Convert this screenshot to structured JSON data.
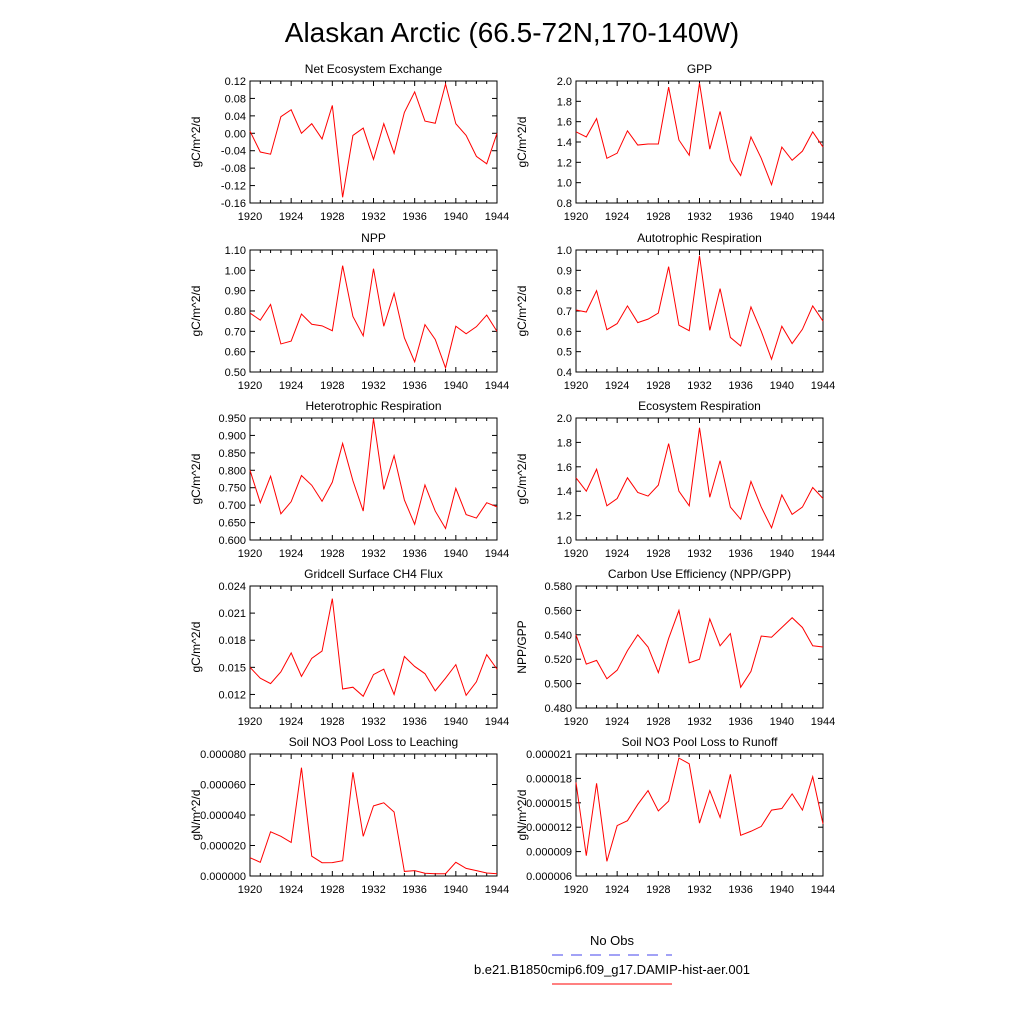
{
  "figure": {
    "title": "Alaskan Arctic (66.5-72N,170-140W)",
    "legend": [
      {
        "label": "No Obs",
        "color": "#4444ee",
        "dash": true
      },
      {
        "label": "b.e21.B1850cmip6.f09_g17.DAMIP-hist-aer.001",
        "color": "#ff0000",
        "dash": false
      }
    ]
  },
  "chart_data": [
    {
      "type": "line",
      "title": "Net Ecosystem Exchange",
      "ylabel": "gC/m^2/d",
      "xlabel": "",
      "xlim": [
        1920,
        1944
      ],
      "xticks": [
        1920,
        1924,
        1928,
        1932,
        1936,
        1940,
        1944
      ],
      "xtick_labels": [
        "1920",
        "1924",
        "1928",
        "1932",
        "1936",
        "1940",
        "1944"
      ],
      "ylim": [
        -0.16,
        0.12
      ],
      "yticks": [
        -0.16,
        -0.12,
        -0.08,
        -0.04,
        0,
        0.04,
        0.08,
        0.12
      ],
      "ytick_labels": [
        "-0.16",
        "-0.12",
        "-0.08",
        "-0.04",
        "0.00",
        "0.04",
        "0.08",
        "0.12"
      ],
      "series": [
        {
          "color": "#ff0000",
          "x": [
            1920,
            1921,
            1922,
            1923,
            1924,
            1925,
            1926,
            1927,
            1928,
            1929,
            1930,
            1931,
            1932,
            1933,
            1934,
            1935,
            1936,
            1937,
            1938,
            1939,
            1940,
            1941,
            1942,
            1943,
            1944
          ],
          "y": [
            0.005,
            -0.043,
            -0.048,
            0.038,
            0.054,
            0.0,
            0.022,
            -0.013,
            0.064,
            -0.147,
            -0.005,
            0.012,
            -0.06,
            0.022,
            -0.046,
            0.048,
            0.095,
            0.028,
            0.023,
            0.113,
            0.022,
            -0.005,
            -0.053,
            -0.07,
            0.0
          ]
        }
      ]
    },
    {
      "type": "line",
      "title": "GPP",
      "ylabel": "gC/m^2/d",
      "xlabel": "",
      "xlim": [
        1920,
        1944
      ],
      "xticks": [
        1920,
        1924,
        1928,
        1932,
        1936,
        1940,
        1944
      ],
      "xtick_labels": [
        "1920",
        "1924",
        "1928",
        "1932",
        "1936",
        "1940",
        "1944"
      ],
      "ylim": [
        0.8,
        2.0
      ],
      "yticks": [
        0.8,
        1.0,
        1.2,
        1.4,
        1.6,
        1.8,
        2.0
      ],
      "ytick_labels": [
        "0.8",
        "1.0",
        "1.2",
        "1.4",
        "1.6",
        "1.8",
        "2.0"
      ],
      "series": [
        {
          "color": "#ff0000",
          "x": [
            1920,
            1921,
            1922,
            1923,
            1924,
            1925,
            1926,
            1927,
            1928,
            1929,
            1930,
            1931,
            1932,
            1933,
            1934,
            1935,
            1936,
            1937,
            1938,
            1939,
            1940,
            1941,
            1942,
            1943,
            1944
          ],
          "y": [
            1.5,
            1.45,
            1.63,
            1.24,
            1.29,
            1.51,
            1.37,
            1.38,
            1.38,
            1.94,
            1.42,
            1.27,
            1.98,
            1.33,
            1.7,
            1.22,
            1.07,
            1.45,
            1.24,
            0.98,
            1.35,
            1.22,
            1.31,
            1.5,
            1.35
          ]
        }
      ]
    },
    {
      "type": "line",
      "title": "NPP",
      "ylabel": "gC/m^2/d",
      "xlabel": "",
      "xlim": [
        1920,
        1944
      ],
      "xticks": [
        1920,
        1924,
        1928,
        1932,
        1936,
        1940,
        1944
      ],
      "xtick_labels": [
        "1920",
        "1924",
        "1928",
        "1932",
        "1936",
        "1940",
        "1944"
      ],
      "ylim": [
        0.5,
        1.1
      ],
      "yticks": [
        0.5,
        0.6,
        0.7,
        0.8,
        0.9,
        1.0,
        1.1
      ],
      "ytick_labels": [
        "0.50",
        "0.60",
        "0.70",
        "0.80",
        "0.90",
        "1.00",
        "1.10"
      ],
      "series": [
        {
          "color": "#ff0000",
          "x": [
            1920,
            1921,
            1922,
            1923,
            1924,
            1925,
            1926,
            1927,
            1928,
            1929,
            1930,
            1931,
            1932,
            1933,
            1934,
            1935,
            1936,
            1937,
            1938,
            1939,
            1940,
            1941,
            1942,
            1943,
            1944
          ],
          "y": [
            0.79,
            0.755,
            0.832,
            0.638,
            0.652,
            0.785,
            0.735,
            0.727,
            0.703,
            1.023,
            0.773,
            0.678,
            1.008,
            0.725,
            0.887,
            0.668,
            0.55,
            0.733,
            0.66,
            0.52,
            0.725,
            0.688,
            0.723,
            0.78,
            0.7
          ]
        }
      ]
    },
    {
      "type": "line",
      "title": "Autotrophic Respiration",
      "ylabel": "gC/m^2/d",
      "xlabel": "",
      "xlim": [
        1920,
        1944
      ],
      "xticks": [
        1920,
        1924,
        1928,
        1932,
        1936,
        1940,
        1944
      ],
      "xtick_labels": [
        "1920",
        "1924",
        "1928",
        "1932",
        "1936",
        "1940",
        "1944"
      ],
      "ylim": [
        0.4,
        1.0
      ],
      "yticks": [
        0.4,
        0.5,
        0.6,
        0.7,
        0.8,
        0.9,
        1.0
      ],
      "ytick_labels": [
        "0.4",
        "0.5",
        "0.6",
        "0.7",
        "0.8",
        "0.9",
        "1.0"
      ],
      "series": [
        {
          "color": "#ff0000",
          "x": [
            1920,
            1921,
            1922,
            1923,
            1924,
            1925,
            1926,
            1927,
            1928,
            1929,
            1930,
            1931,
            1932,
            1933,
            1934,
            1935,
            1936,
            1937,
            1938,
            1939,
            1940,
            1941,
            1942,
            1943,
            1944
          ],
          "y": [
            0.705,
            0.695,
            0.8,
            0.608,
            0.638,
            0.725,
            0.643,
            0.66,
            0.69,
            0.918,
            0.63,
            0.603,
            0.972,
            0.605,
            0.81,
            0.57,
            0.528,
            0.72,
            0.6,
            0.463,
            0.625,
            0.54,
            0.61,
            0.725,
            0.65
          ]
        }
      ]
    },
    {
      "type": "line",
      "title": "Heterotrophic Respiration",
      "ylabel": "gC/m^2/d",
      "xlabel": "",
      "xlim": [
        1920,
        1944
      ],
      "xticks": [
        1920,
        1924,
        1928,
        1932,
        1936,
        1940,
        1944
      ],
      "xtick_labels": [
        "1920",
        "1924",
        "1928",
        "1932",
        "1936",
        "1940",
        "1944"
      ],
      "ylim": [
        0.6,
        0.95
      ],
      "yticks": [
        0.6,
        0.65,
        0.7,
        0.75,
        0.8,
        0.85,
        0.9,
        0.95
      ],
      "ytick_labels": [
        "0.600",
        "0.650",
        "0.700",
        "0.750",
        "0.800",
        "0.850",
        "0.900",
        "0.950"
      ],
      "series": [
        {
          "color": "#ff0000",
          "x": [
            1920,
            1921,
            1922,
            1923,
            1924,
            1925,
            1926,
            1927,
            1928,
            1929,
            1930,
            1931,
            1932,
            1933,
            1934,
            1935,
            1936,
            1937,
            1938,
            1939,
            1940,
            1941,
            1942,
            1943,
            1944
          ],
          "y": [
            0.8,
            0.707,
            0.783,
            0.675,
            0.71,
            0.785,
            0.757,
            0.711,
            0.766,
            0.877,
            0.77,
            0.683,
            0.948,
            0.745,
            0.842,
            0.715,
            0.645,
            0.758,
            0.683,
            0.633,
            0.748,
            0.673,
            0.663,
            0.707,
            0.695
          ]
        }
      ]
    },
    {
      "type": "line",
      "title": "Ecosystem Respiration",
      "ylabel": "gC/m^2/d",
      "xlabel": "",
      "xlim": [
        1920,
        1944
      ],
      "xticks": [
        1920,
        1924,
        1928,
        1932,
        1936,
        1940,
        1944
      ],
      "xtick_labels": [
        "1920",
        "1924",
        "1928",
        "1932",
        "1936",
        "1940",
        "1944"
      ],
      "ylim": [
        1.0,
        2.0
      ],
      "yticks": [
        1.0,
        1.2,
        1.4,
        1.6,
        1.8,
        2.0
      ],
      "ytick_labels": [
        "1.0",
        "1.2",
        "1.4",
        "1.6",
        "1.8",
        "2.0"
      ],
      "series": [
        {
          "color": "#ff0000",
          "x": [
            1920,
            1921,
            1922,
            1923,
            1924,
            1925,
            1926,
            1927,
            1928,
            1929,
            1930,
            1931,
            1932,
            1933,
            1934,
            1935,
            1936,
            1937,
            1938,
            1939,
            1940,
            1941,
            1942,
            1943,
            1944
          ],
          "y": [
            1.51,
            1.4,
            1.58,
            1.28,
            1.34,
            1.51,
            1.39,
            1.36,
            1.45,
            1.79,
            1.4,
            1.28,
            1.92,
            1.35,
            1.65,
            1.27,
            1.17,
            1.48,
            1.27,
            1.1,
            1.37,
            1.21,
            1.27,
            1.43,
            1.34
          ]
        }
      ]
    },
    {
      "type": "line",
      "title": "Gridcell Surface CH4 Flux",
      "ylabel": "gC/m^2/d",
      "xlabel": "",
      "xlim": [
        1920,
        1944
      ],
      "xticks": [
        1920,
        1924,
        1928,
        1932,
        1936,
        1940,
        1944
      ],
      "xtick_labels": [
        "1920",
        "1924",
        "1928",
        "1932",
        "1936",
        "1940",
        "1944"
      ],
      "ylim": [
        0.0105,
        0.024
      ],
      "yticks": [
        0.012,
        0.015,
        0.018,
        0.021,
        0.024
      ],
      "ytick_labels": [
        "0.012",
        "0.015",
        "0.018",
        "0.021",
        "0.024"
      ],
      "series": [
        {
          "color": "#ff0000",
          "x": [
            1920,
            1921,
            1922,
            1923,
            1924,
            1925,
            1926,
            1927,
            1928,
            1929,
            1930,
            1931,
            1932,
            1933,
            1934,
            1935,
            1936,
            1937,
            1938,
            1939,
            1940,
            1941,
            1942,
            1943,
            1944
          ],
          "y": [
            0.015,
            0.0138,
            0.0132,
            0.0145,
            0.0166,
            0.014,
            0.016,
            0.0168,
            0.0226,
            0.0126,
            0.0128,
            0.0118,
            0.0142,
            0.0148,
            0.012,
            0.0162,
            0.0151,
            0.0143,
            0.0124,
            0.0138,
            0.0153,
            0.0119,
            0.0134,
            0.0164,
            0.0148
          ]
        }
      ]
    },
    {
      "type": "line",
      "title": "Carbon Use Efficiency (NPP/GPP)",
      "ylabel": "NPP/GPP",
      "xlabel": "",
      "xlim": [
        1920,
        1944
      ],
      "xticks": [
        1920,
        1924,
        1928,
        1932,
        1936,
        1940,
        1944
      ],
      "xtick_labels": [
        "1920",
        "1924",
        "1928",
        "1932",
        "1936",
        "1940",
        "1944"
      ],
      "ylim": [
        0.48,
        0.58
      ],
      "yticks": [
        0.48,
        0.5,
        0.52,
        0.54,
        0.56,
        0.58
      ],
      "ytick_labels": [
        "0.480",
        "0.500",
        "0.520",
        "0.540",
        "0.560",
        "0.580"
      ],
      "series": [
        {
          "color": "#ff0000",
          "x": [
            1920,
            1921,
            1922,
            1923,
            1924,
            1925,
            1926,
            1927,
            1928,
            1929,
            1930,
            1931,
            1932,
            1933,
            1934,
            1935,
            1936,
            1937,
            1938,
            1939,
            1940,
            1941,
            1942,
            1943,
            1944
          ],
          "y": [
            0.54,
            0.516,
            0.519,
            0.504,
            0.511,
            0.527,
            0.54,
            0.53,
            0.509,
            0.537,
            0.56,
            0.517,
            0.52,
            0.553,
            0.531,
            0.541,
            0.497,
            0.51,
            0.539,
            0.538,
            0.546,
            0.554,
            0.546,
            0.531,
            0.53
          ]
        }
      ]
    },
    {
      "type": "line",
      "title": "Soil NO3 Pool Loss to Leaching",
      "ylabel": "gN/m^2/d",
      "xlabel": "",
      "xlim": [
        1920,
        1944
      ],
      "xticks": [
        1920,
        1924,
        1928,
        1932,
        1936,
        1940,
        1944
      ],
      "xtick_labels": [
        "1920",
        "1924",
        "1928",
        "1932",
        "1936",
        "1940",
        "1944"
      ],
      "ylim": [
        0,
        8e-05
      ],
      "yticks": [
        0,
        2e-05,
        4e-05,
        6e-05,
        8e-05
      ],
      "ytick_labels": [
        "0.000000",
        "0.000020",
        "0.000040",
        "0.000060",
        "0.000080"
      ],
      "series": [
        {
          "color": "#ff0000",
          "x": [
            1920,
            1921,
            1922,
            1923,
            1924,
            1925,
            1926,
            1927,
            1928,
            1929,
            1930,
            1931,
            1932,
            1933,
            1934,
            1935,
            1936,
            1937,
            1938,
            1939,
            1940,
            1941,
            1942,
            1943,
            1944
          ],
          "y": [
            1.2e-05,
            9e-06,
            2.9e-05,
            2.6e-05,
            2.2e-05,
            7.1e-05,
            1.3e-05,
            8.7e-06,
            8.8e-06,
            1e-05,
            6.8e-05,
            2.6e-05,
            4.6e-05,
            4.8e-05,
            4.2e-05,
            3e-06,
            3.5e-06,
            1.8e-06,
            1.5e-06,
            1.5e-06,
            9e-06,
            5e-06,
            3.5e-06,
            2e-06,
            1.5e-06
          ]
        }
      ]
    },
    {
      "type": "line",
      "title": "Soil NO3 Pool Loss to Runoff",
      "ylabel": "gN/m^2/d",
      "xlabel": "",
      "xlim": [
        1920,
        1944
      ],
      "xticks": [
        1920,
        1924,
        1928,
        1932,
        1936,
        1940,
        1944
      ],
      "xtick_labels": [
        "1920",
        "1924",
        "1928",
        "1932",
        "1936",
        "1940",
        "1944"
      ],
      "ylim": [
        6e-06,
        2.1e-05
      ],
      "yticks": [
        6e-06,
        9e-06,
        1.2e-05,
        1.5e-05,
        1.8e-05,
        2.1e-05
      ],
      "ytick_labels": [
        "0.000006",
        "0.000009",
        "0.000012",
        "0.000015",
        "0.000018",
        "0.000021"
      ],
      "series": [
        {
          "color": "#ff0000",
          "x": [
            1920,
            1921,
            1922,
            1923,
            1924,
            1925,
            1926,
            1927,
            1928,
            1929,
            1930,
            1931,
            1932,
            1933,
            1934,
            1935,
            1936,
            1937,
            1938,
            1939,
            1940,
            1941,
            1942,
            1943,
            1944
          ],
          "y": [
            1.75e-05,
            8.5e-06,
            1.74e-05,
            7.8e-06,
            1.22e-05,
            1.28e-05,
            1.48e-05,
            1.65e-05,
            1.4e-05,
            1.52e-05,
            2.05e-05,
            1.98e-05,
            1.25e-05,
            1.65e-05,
            1.32e-05,
            1.85e-05,
            1.1e-05,
            1.15e-05,
            1.21e-05,
            1.41e-05,
            1.43e-05,
            1.61e-05,
            1.41e-05,
            1.82e-05,
            1.24e-05
          ]
        }
      ]
    }
  ]
}
